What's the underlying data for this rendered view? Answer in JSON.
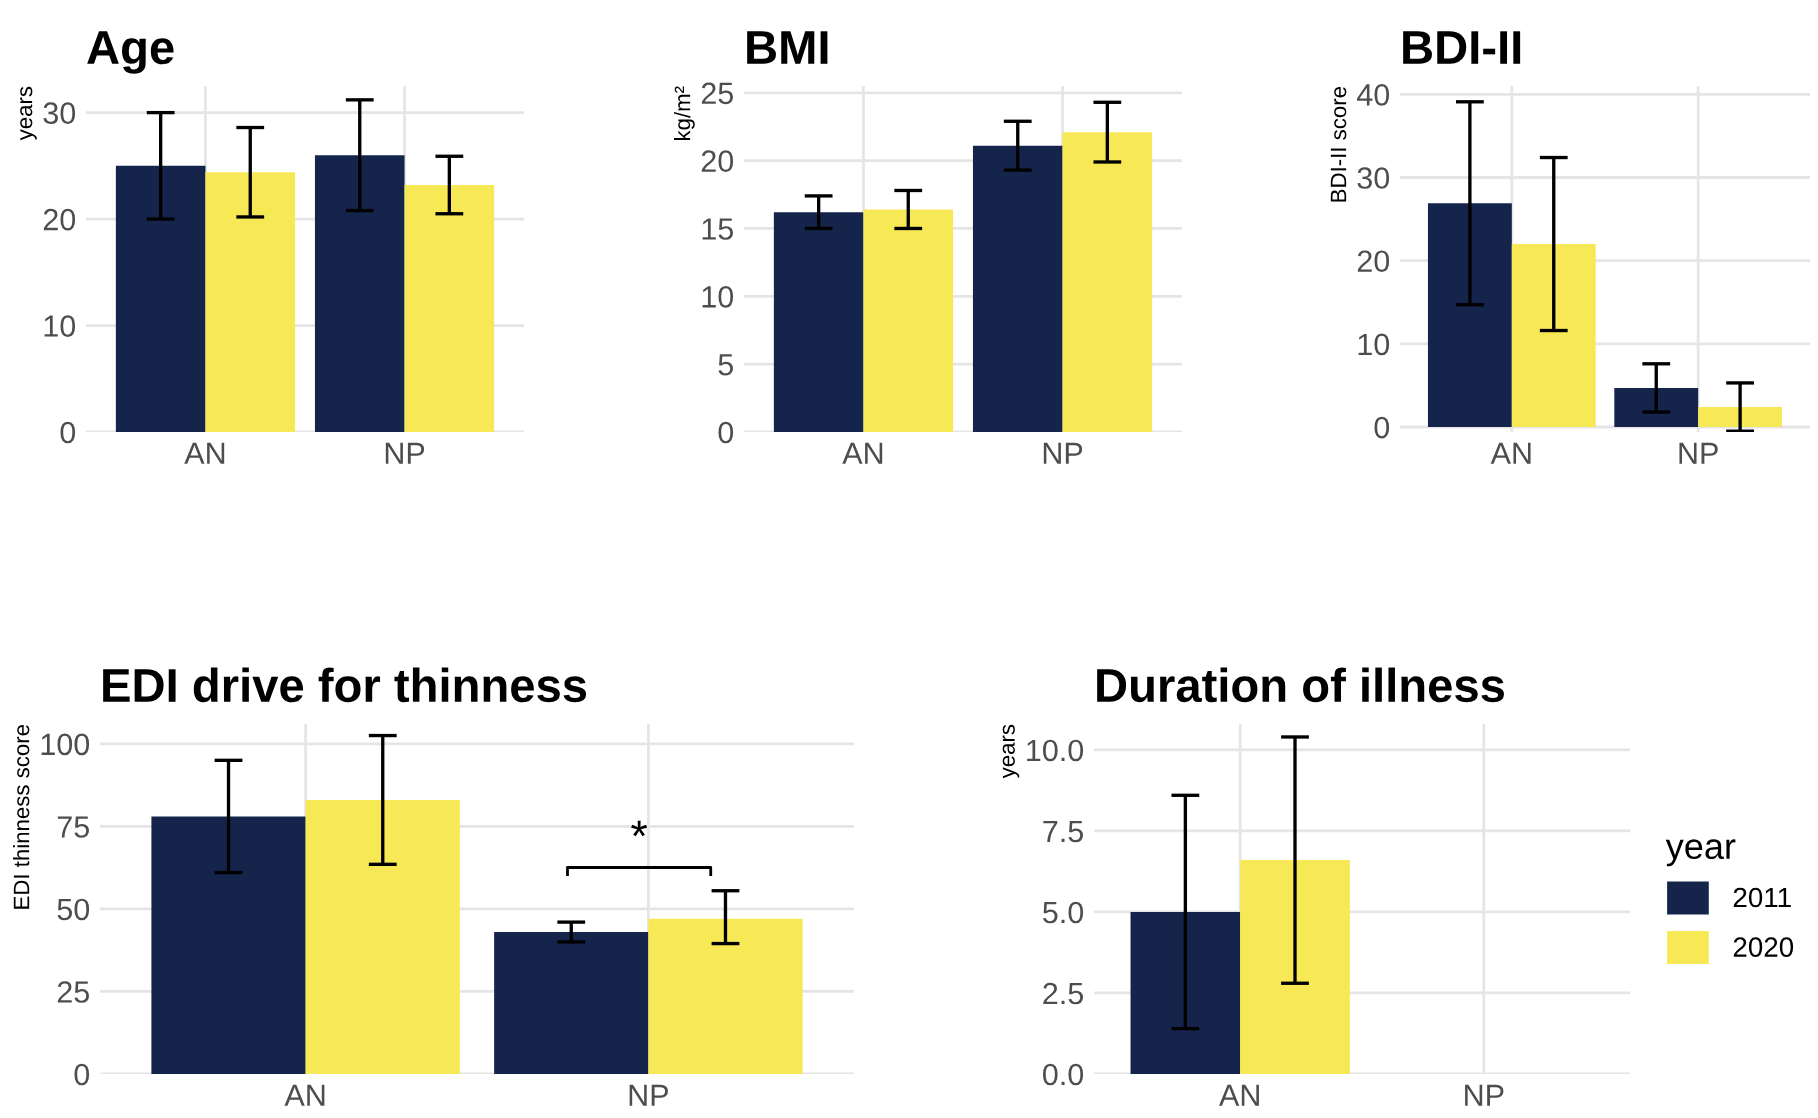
{
  "chart_data": [
    {
      "type": "bar",
      "title": "Age",
      "ylabel": "years",
      "categories": [
        "AN",
        "NP"
      ],
      "ylim": [
        0,
        32.5
      ],
      "yticks": [
        0,
        10,
        20,
        30
      ],
      "grid": true,
      "series": [
        {
          "color": "#14244b",
          "values": [
            25,
            26
          ],
          "errors": [
            [
              20,
              30
            ],
            [
              20.8,
              31.2
            ]
          ]
        },
        {
          "color": "#f7e855",
          "values": [
            24.4,
            23.2
          ],
          "errors": [
            [
              20.2,
              28.6
            ],
            [
              20.5,
              25.9
            ]
          ]
        }
      ]
    },
    {
      "type": "bar",
      "title": "BMI",
      "ylabel": "kg/m²",
      "categories": [
        "AN",
        "NP"
      ],
      "ylim": [
        0,
        25.5
      ],
      "yticks": [
        0,
        5,
        10,
        15,
        20,
        25
      ],
      "grid": true,
      "series": [
        {
          "color": "#14244b",
          "values": [
            16.2,
            21.1
          ],
          "errors": [
            [
              15,
              17.4
            ],
            [
              19.3,
              22.9
            ]
          ]
        },
        {
          "color": "#f7e855",
          "values": [
            16.4,
            22.1
          ],
          "errors": [
            [
              15,
              17.8
            ],
            [
              19.9,
              24.3
            ]
          ]
        }
      ]
    },
    {
      "type": "bar",
      "title": "BDI-II",
      "ylabel": "BDI-II score",
      "categories": [
        "AN",
        "NP"
      ],
      "ylim": [
        -0.6,
        41
      ],
      "yticks": [
        0,
        10,
        20,
        30,
        40
      ],
      "grid": true,
      "series": [
        {
          "color": "#14244b",
          "values": [
            26.9,
            4.7
          ],
          "errors": [
            [
              14.7,
              39.1
            ],
            [
              1.8,
              7.6
            ]
          ]
        },
        {
          "color": "#f7e855",
          "values": [
            22,
            2.4
          ],
          "errors": [
            [
              11.6,
              32.4
            ],
            [
              -0.5,
              5.3
            ]
          ]
        }
      ]
    },
    {
      "type": "bar",
      "title": "EDI drive for thinness",
      "ylabel": "EDI thinness score",
      "categories": [
        "AN",
        "NP"
      ],
      "ylim": [
        0,
        106
      ],
      "yticks": [
        0,
        25,
        50,
        75,
        100
      ],
      "grid": true,
      "annotations": [
        "*"
      ],
      "series": [
        {
          "color": "#14244b",
          "values": [
            78,
            43
          ],
          "errors": [
            [
              61,
              95
            ],
            [
              40,
              46
            ]
          ]
        },
        {
          "color": "#f7e855",
          "values": [
            83,
            47
          ],
          "errors": [
            [
              63.5,
              102.5
            ],
            [
              39.5,
              55.5
            ]
          ]
        }
      ]
    },
    {
      "type": "bar",
      "title": "Duration of illness",
      "ylabel": "years",
      "categories": [
        "AN",
        "NP"
      ],
      "ylim": [
        0,
        10.8
      ],
      "yticks": [
        {
          "value": 0,
          "label": "0.0"
        },
        {
          "value": 2.5,
          "label": "2.5"
        },
        {
          "value": 5,
          "label": "5.0"
        },
        {
          "value": 7.5,
          "label": "7.5"
        },
        {
          "value": 10,
          "label": "10.0"
        }
      ],
      "grid": true,
      "legend": "right",
      "legend_title": "year",
      "series": [
        {
          "name": "2011",
          "color": "#14244b",
          "values": [
            5,
            null
          ],
          "errors": [
            [
              1.4,
              8.6
            ],
            null
          ]
        },
        {
          "name": "2020",
          "color": "#f7e855",
          "values": [
            6.6,
            null
          ],
          "errors": [
            [
              2.8,
              10.4
            ],
            null
          ]
        }
      ]
    }
  ]
}
